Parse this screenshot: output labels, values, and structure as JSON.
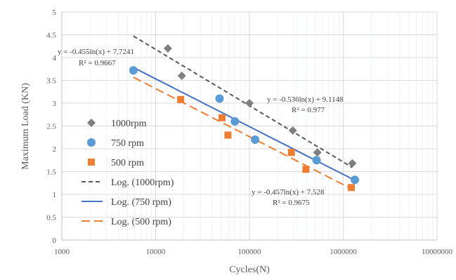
{
  "chart_data": {
    "type": "scatter",
    "xlabel": "Cycles(N)",
    "ylabel": "Maximum Load (KN)",
    "xscale": "log",
    "xlim": [
      1000,
      10000000
    ],
    "ylim": [
      0,
      5
    ],
    "x_ticks": [
      "1000",
      "10000",
      "100000",
      "1000000",
      "10000000"
    ],
    "y_ticks": [
      "0",
      "0.5",
      "1",
      "1.5",
      "2",
      "2.5",
      "3",
      "3.5",
      "4",
      "4.5",
      "5"
    ],
    "grid": true,
    "legend_position": "left",
    "series": [
      {
        "name": "1000rpm",
        "marker": "diamond",
        "color": "#7f7f7f",
        "points": [
          {
            "x": 13500,
            "y": 4.2
          },
          {
            "x": 19000,
            "y": 3.6
          },
          {
            "x": 100000,
            "y": 3.0
          },
          {
            "x": 290000,
            "y": 2.4
          },
          {
            "x": 530000,
            "y": 1.92
          },
          {
            "x": 1250000,
            "y": 1.68
          }
        ]
      },
      {
        "name": "750 rpm",
        "marker": "circle",
        "color": "#5b9bd5",
        "points": [
          {
            "x": 5800,
            "y": 3.72
          },
          {
            "x": 48000,
            "y": 3.1
          },
          {
            "x": 70000,
            "y": 2.6
          },
          {
            "x": 115000,
            "y": 2.2
          },
          {
            "x": 520000,
            "y": 1.75
          },
          {
            "x": 1330000,
            "y": 1.32
          }
        ]
      },
      {
        "name": "500 rpm",
        "marker": "square",
        "color": "#ed7d31",
        "points": [
          {
            "x": 18500,
            "y": 3.08
          },
          {
            "x": 51000,
            "y": 2.68
          },
          {
            "x": 59000,
            "y": 2.3
          },
          {
            "x": 280000,
            "y": 1.92
          },
          {
            "x": 400000,
            "y": 1.55
          },
          {
            "x": 1220000,
            "y": 1.15
          }
        ]
      }
    ],
    "trendlines": [
      {
        "name": "Log. (1000rpm)",
        "color": "#595959",
        "dash": "dashed",
        "a": -0.536,
        "b": 9.1148,
        "x_range": [
          5800,
          1250000
        ],
        "equation": "y = -0.536ln(x)  + 9.1148",
        "r2": "R² = 0.977"
      },
      {
        "name": "Log. (750 rpm)",
        "color": "#4472c4",
        "dash": "solid",
        "a": -0.455,
        "b": 7.7241,
        "x_range": [
          5800,
          1330000
        ],
        "equation": "y = -0.455ln(x)  + 7.7241",
        "r2": "R² = 0.9667"
      },
      {
        "name": "Log. (500 rpm)",
        "color": "#ed7d31",
        "dash": "long-dash",
        "a": -0.457,
        "b": 7.528,
        "x_range": [
          5800,
          1220000
        ],
        "equation": "y = -0.457ln(x)  + 7.528",
        "r2": "R² = 0.9675"
      }
    ],
    "legend": [
      {
        "label": "1000rpm",
        "kind": "marker",
        "marker": "diamond",
        "color": "#7f7f7f"
      },
      {
        "label": "750 rpm",
        "kind": "marker",
        "marker": "circle",
        "color": "#5b9bd5"
      },
      {
        "label": "500 rpm",
        "kind": "marker",
        "marker": "square",
        "color": "#ed7d31"
      },
      {
        "label": "Log. (1000rpm)",
        "kind": "line",
        "dash": "dashed",
        "color": "#595959"
      },
      {
        "label": "Log. (750 rpm)",
        "kind": "line",
        "dash": "solid",
        "color": "#4472c4"
      },
      {
        "label": "Log. (500 rpm)",
        "kind": "line",
        "dash": "long-dash",
        "color": "#ed7d31"
      }
    ]
  }
}
